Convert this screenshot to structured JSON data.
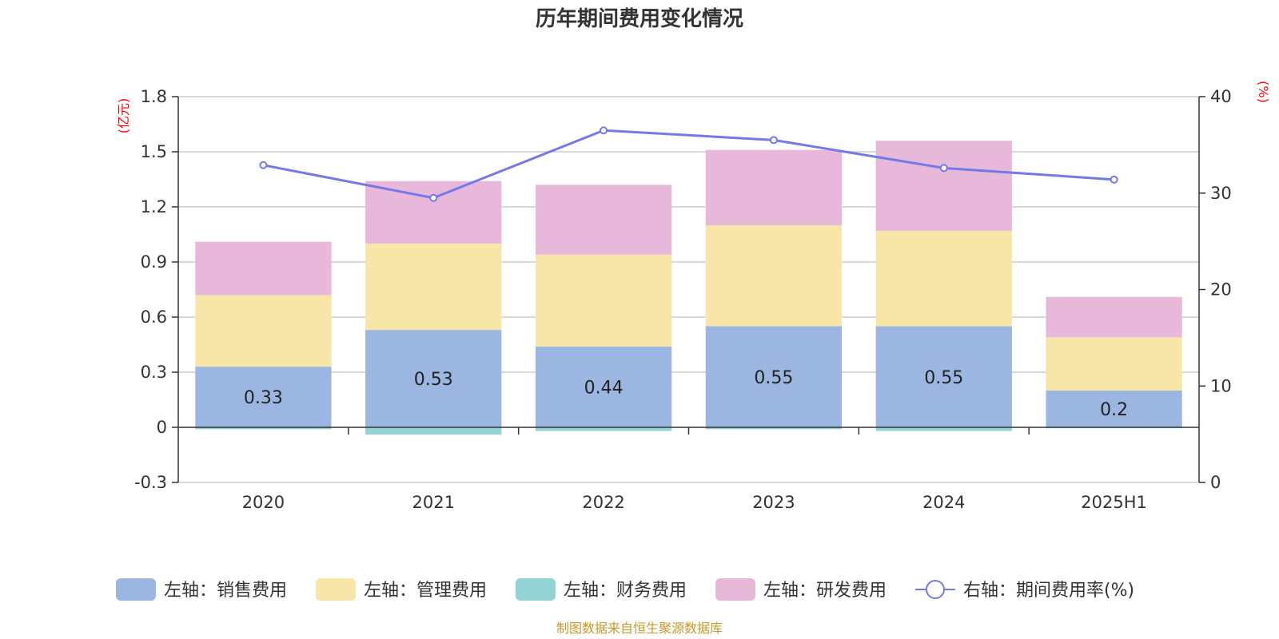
{
  "chart_data": {
    "type": "bar",
    "title": "历年期间费用变化情况",
    "categories": [
      "2020",
      "2021",
      "2022",
      "2023",
      "2024",
      "2025H1"
    ],
    "left_axis": {
      "unit": "(亿元)",
      "ylim": [
        -0.3,
        1.8
      ],
      "ticks": [
        1.8,
        1.5,
        1.2,
        0.9,
        0.6,
        0.3,
        0,
        -0.3
      ],
      "tick_labels": [
        "1.8",
        "1.5",
        "1.2",
        "0.9",
        "0.6",
        "0.3",
        "0",
        "-0.3"
      ]
    },
    "right_axis": {
      "unit": "(%)",
      "ylim": [
        0,
        40
      ],
      "ticks": [
        40,
        30,
        20,
        10,
        0
      ],
      "tick_labels": [
        "40",
        "30",
        "20",
        "10",
        "0"
      ]
    },
    "series": [
      {
        "name": "左轴：销售费用",
        "kind": "bar",
        "axis": "left",
        "color": "#9bb6e0",
        "values": [
          0.33,
          0.53,
          0.44,
          0.55,
          0.55,
          0.2
        ],
        "labels": [
          "0.33",
          "0.53",
          "0.44",
          "0.55",
          "0.55",
          "0.2"
        ]
      },
      {
        "name": "左轴：管理费用",
        "kind": "bar",
        "axis": "left",
        "color": "#f8e6a8",
        "values": [
          0.39,
          0.47,
          0.5,
          0.55,
          0.52,
          0.29
        ]
      },
      {
        "name": "左轴：财务费用",
        "kind": "bar",
        "axis": "left",
        "color": "#93d3d3",
        "values": [
          -0.01,
          -0.04,
          -0.02,
          -0.01,
          -0.02,
          -0.005
        ]
      },
      {
        "name": "左轴：研发费用",
        "kind": "bar",
        "axis": "left",
        "color": "#e7b8da",
        "values": [
          0.29,
          0.34,
          0.38,
          0.41,
          0.49,
          0.22
        ]
      },
      {
        "name": "右轴：期间费用率(%)",
        "kind": "line",
        "axis": "right",
        "color": "#7479ea",
        "values": [
          32.9,
          29.5,
          36.5,
          35.5,
          32.6,
          31.4
        ]
      }
    ],
    "grid": true,
    "legend_position": "bottom"
  },
  "footer": {
    "source": "制图数据来自恒生聚源数据库"
  }
}
